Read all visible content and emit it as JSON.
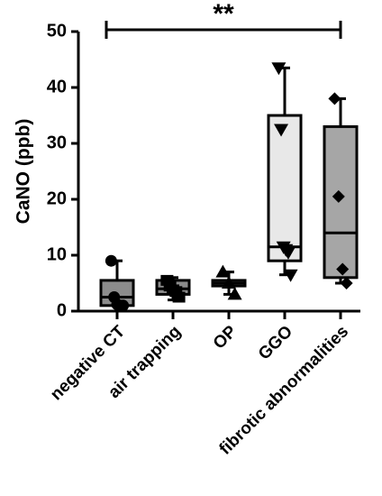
{
  "chart_data": {
    "type": "box",
    "ylabel": "CaNO (ppb)",
    "ylim": [
      0,
      50
    ],
    "yticks": [
      0,
      10,
      20,
      30,
      40,
      50
    ],
    "categories": [
      "negative CT",
      "air trapping",
      "OP",
      "GGO",
      "fibrotic abnormalities"
    ],
    "boxes": [
      {
        "min": 1.0,
        "q1": 1.0,
        "median": 2.5,
        "q3": 5.5,
        "max": 9.0,
        "fill": "#8c8c8c",
        "marker": "circle",
        "points": [
          9.0,
          2.5,
          1.2,
          1.0,
          1.0
        ]
      },
      {
        "min": 2.0,
        "q1": 3.0,
        "median": 4.0,
        "q3": 5.5,
        "max": 6.0,
        "fill": "#8c8c8c",
        "marker": "square",
        "points": [
          5.5,
          4.5,
          3.8,
          3.5,
          2.5
        ]
      },
      {
        "min": 3.0,
        "q1": 4.5,
        "median": 5.0,
        "q3": 5.5,
        "max": 7.0,
        "fill": "#8c8c8c",
        "marker": "triangle-up",
        "points": [
          7.0,
          5.0,
          3.0
        ]
      },
      {
        "min": 6.5,
        "q1": 9.0,
        "median": 11.5,
        "q3": 35.0,
        "max": 43.5,
        "fill": "#e8e8e8",
        "marker": "triangle-down",
        "points": [
          43.5,
          32.5,
          11.5,
          11.0,
          10.5,
          6.5
        ]
      },
      {
        "min": 5.0,
        "q1": 6.0,
        "median": 14.0,
        "q3": 33.0,
        "max": 38.0,
        "fill": "#a6a6a6",
        "marker": "diamond",
        "points": [
          38.0,
          20.5,
          7.5,
          5.0
        ]
      }
    ],
    "significance": {
      "from": "negative CT",
      "to": "fibrotic abnormalities",
      "label": "**",
      "y": 50
    }
  }
}
